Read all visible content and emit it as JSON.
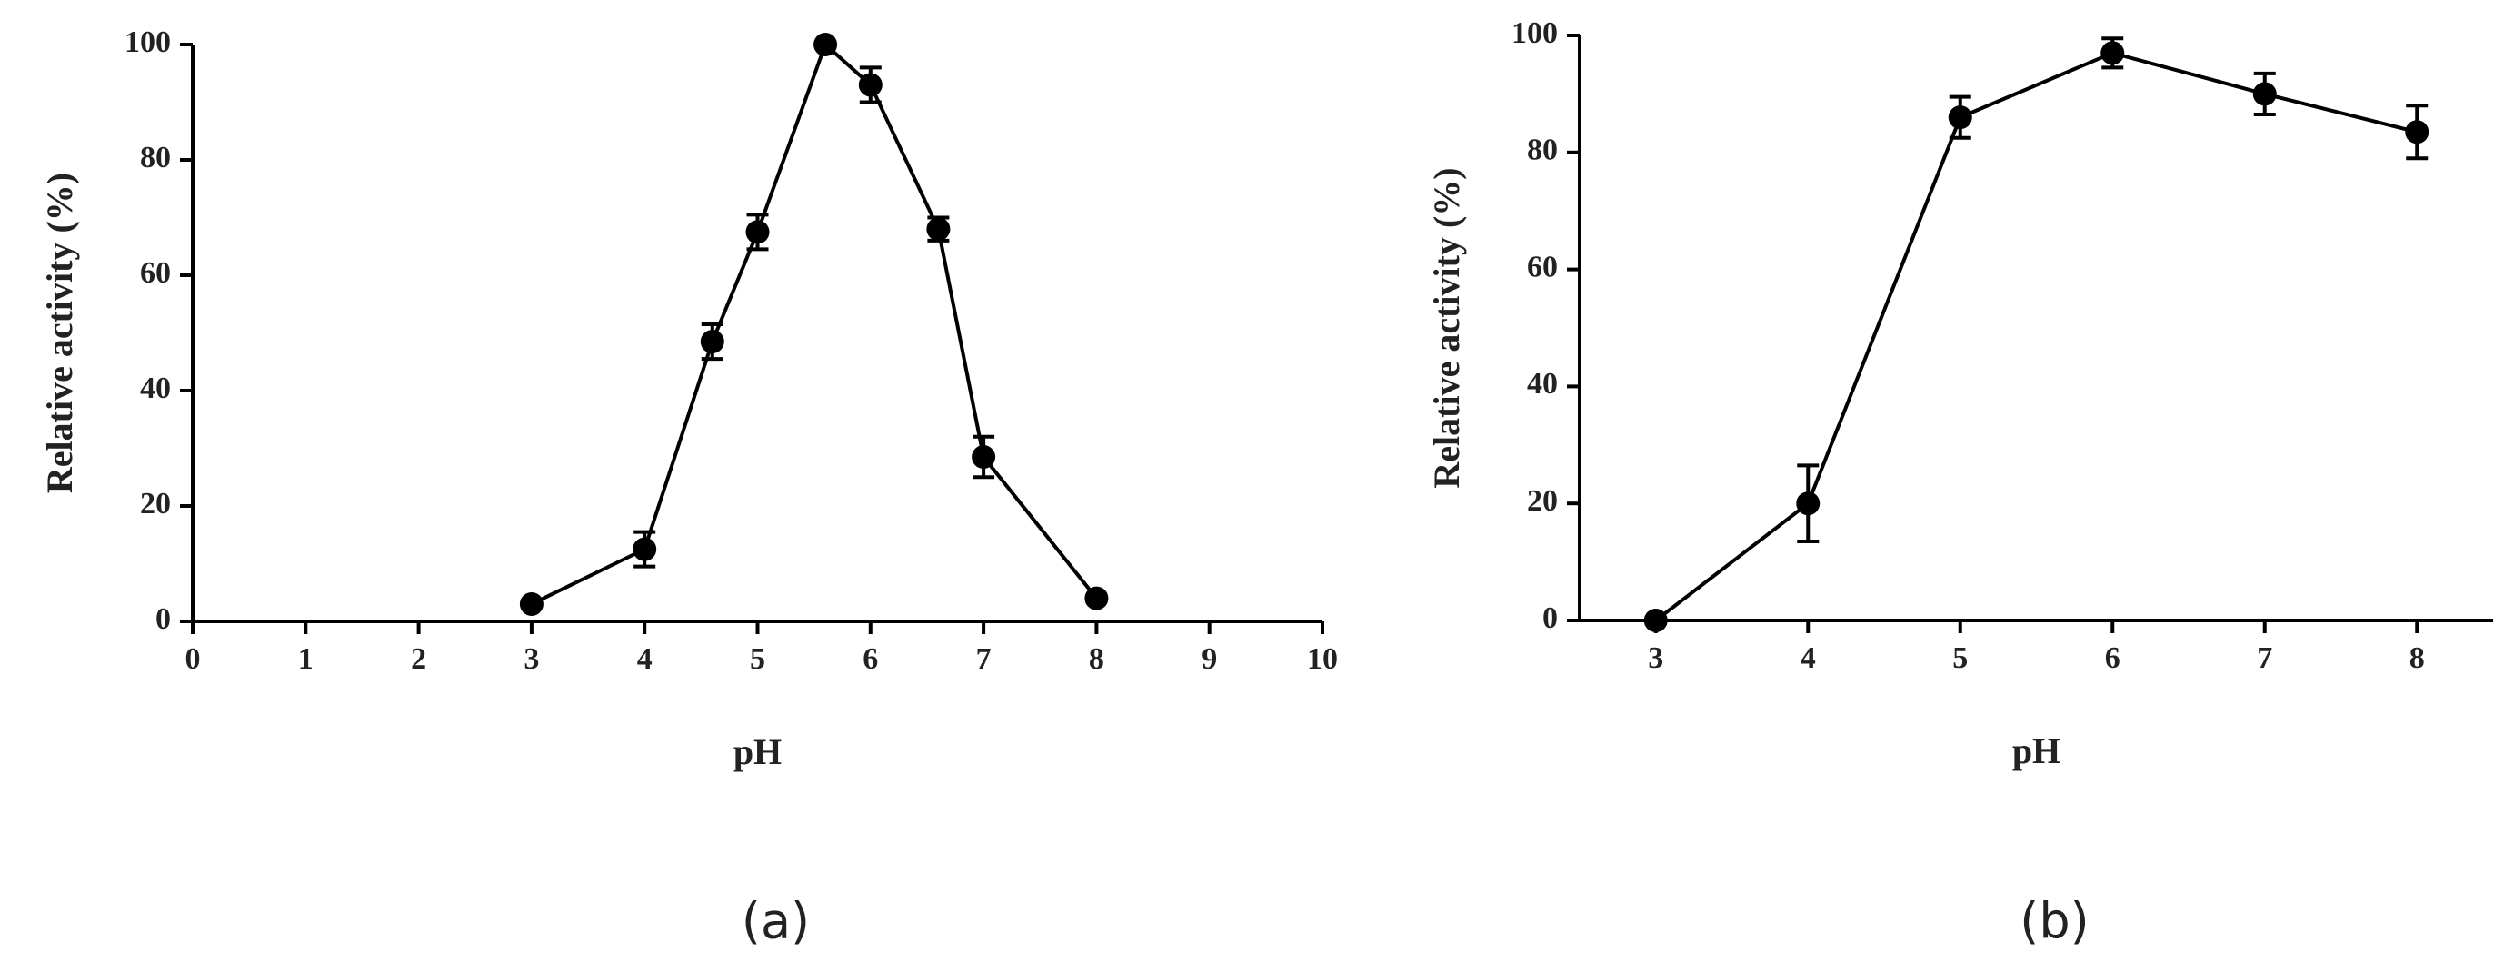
{
  "chart_data": [
    {
      "type": "line",
      "panel_label": "(a)",
      "x_label": "pH",
      "y_label": "Relative activity (%)",
      "x": [
        3,
        4,
        4.6,
        5,
        5.6,
        6,
        6.6,
        7,
        8
      ],
      "values": [
        3,
        12.5,
        48.5,
        67.5,
        100,
        93,
        68,
        28.5,
        4
      ],
      "errors": [
        0.5,
        3,
        3,
        3,
        0.5,
        3,
        2,
        3.5,
        0.5
      ],
      "color": "#000000",
      "xlim": [
        0,
        10
      ],
      "xticks": [
        0,
        1,
        2,
        3,
        4,
        5,
        6,
        7,
        8,
        9,
        10
      ],
      "ylim": [
        0,
        100
      ],
      "yticks": [
        0,
        20,
        40,
        60,
        80,
        100
      ]
    },
    {
      "type": "line",
      "panel_label": "(b)",
      "x_label": "pH",
      "y_label": "Relative activity (%)",
      "x": [
        3,
        4,
        5,
        6,
        7,
        8
      ],
      "values": [
        0,
        20,
        86,
        97,
        90,
        83.5
      ],
      "errors": [
        0.5,
        6.5,
        3.5,
        2.5,
        3.5,
        4.5
      ],
      "color": "#000000",
      "xlim": [
        2.5,
        8.5
      ],
      "xticks": [
        3,
        4,
        5,
        6,
        7,
        8
      ],
      "ylim": [
        0,
        100
      ],
      "yticks": [
        0,
        20,
        40,
        60,
        80,
        100
      ]
    }
  ]
}
